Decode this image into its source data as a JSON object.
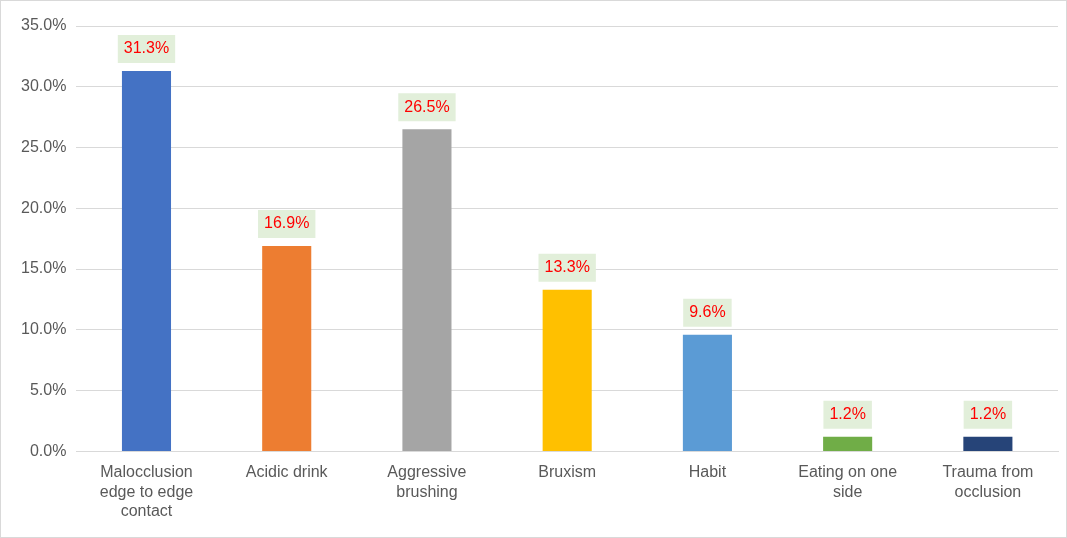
{
  "chart_data": {
    "type": "bar",
    "categories": [
      "Malocclusion edge to edge contact",
      "Acidic drink",
      "Aggressive brushing",
      "Bruxism",
      "Habit",
      "Eating on one side",
      "Trauma from occlusion"
    ],
    "values": [
      31.3,
      16.9,
      26.5,
      13.3,
      9.6,
      1.2,
      1.2
    ],
    "colors": [
      "#4472c4",
      "#ed7d31",
      "#a5a5a5",
      "#ffc000",
      "#5b9bd5",
      "#70ad47",
      "#264478"
    ],
    "value_labels": [
      "31.3%",
      "16.9%",
      "26.5%",
      "13.3%",
      "9.6%",
      "1.2%",
      "1.2%"
    ],
    "ylim": [
      0,
      35
    ],
    "yticks": [
      {
        "value": 0,
        "label": "0.0%"
      },
      {
        "value": 5,
        "label": "5.0%"
      },
      {
        "value": 10,
        "label": "10.0%"
      },
      {
        "value": 15,
        "label": "15.0%"
      },
      {
        "value": 20,
        "label": "20.0%"
      },
      {
        "value": 25,
        "label": "25.0%"
      },
      {
        "value": 30,
        "label": "30.0%"
      },
      {
        "value": 35,
        "label": "35.0%"
      }
    ],
    "grid": "y"
  }
}
